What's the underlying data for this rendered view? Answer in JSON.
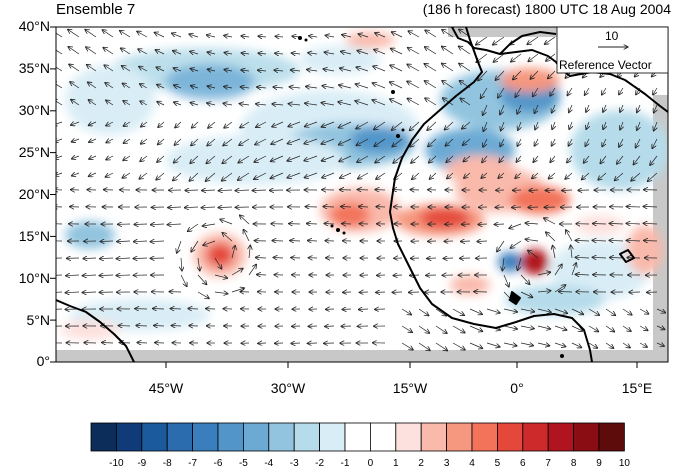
{
  "header": {
    "member": "Ensemble 7",
    "forecast": "(186 h forecast) 1800 UTC 18 Aug 2004"
  },
  "axes": {
    "y_ticks": [
      "40°N",
      "35°N",
      "30°N",
      "25°N",
      "20°N",
      "15°N",
      "10°N",
      "5°N",
      "0°"
    ],
    "x_ticks": [
      "45°W",
      "30°W",
      "15°W",
      "0°",
      "15°E"
    ]
  },
  "reference_vector": {
    "value": "10",
    "label": "Reference Vector"
  },
  "colorbar": {
    "labels": [
      "-10",
      "-9",
      "-8",
      "-7",
      "-6",
      "-5",
      "-4",
      "-3",
      "-2",
      "-1",
      "0",
      "1",
      "2",
      "3",
      "4",
      "5",
      "6",
      "7",
      "8",
      "9",
      "10"
    ],
    "colors": [
      "#0c2d5a",
      "#103b78",
      "#1b5a9c",
      "#2a6cad",
      "#3a7ebd",
      "#5296c9",
      "#6caad4",
      "#92c4df",
      "#b6dbea",
      "#d9edf6",
      "#ffffff",
      "#ffffff",
      "#fde1de",
      "#f9b9ab",
      "#f6977f",
      "#f2735a",
      "#e4483a",
      "#cd2a2c",
      "#b0141f",
      "#8a0d14",
      "#5e0b0b"
    ]
  },
  "map_colors": {
    "land_line": "#000000",
    "missing": "#c8c8c8"
  }
}
